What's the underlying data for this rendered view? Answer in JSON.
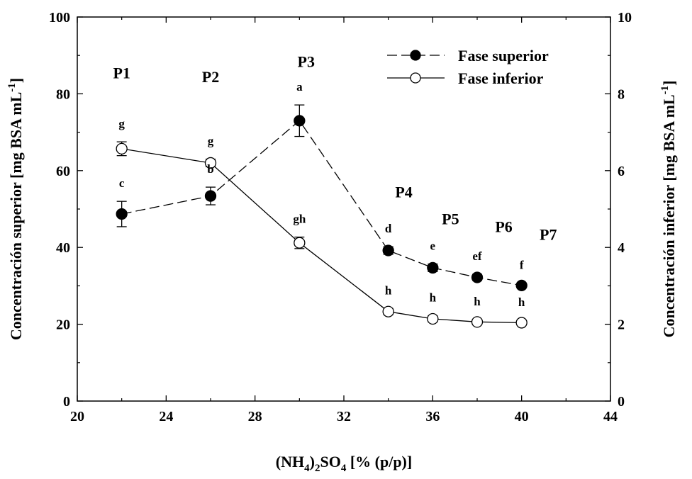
{
  "chart_data": {
    "type": "line",
    "title": "",
    "xlabel": {
      "prefix": "(NH",
      "sub1": "4",
      "mid": ")",
      "sub2": "2",
      "suffix": "SO",
      "sub3": "4",
      "tail": " [% (p/p)]"
    },
    "ylabel_left": {
      "text": "Concentración superior [mg BSA mL",
      "sup": "-1",
      "end": "]"
    },
    "ylabel_right": {
      "text": "Concentración inferior [mg BSA mL",
      "sup": "-1",
      "end": "]"
    },
    "xlim": [
      20,
      44
    ],
    "ylim_left": [
      0,
      100
    ],
    "ylim_right": [
      0,
      10
    ],
    "x_ticks": [
      20,
      24,
      28,
      32,
      36,
      40,
      44
    ],
    "y_ticks_left": [
      0,
      20,
      40,
      60,
      80,
      100
    ],
    "y_ticks_right": [
      0,
      2,
      4,
      6,
      8,
      10
    ],
    "legend_position": "top-right",
    "series": [
      {
        "name": "Fase superior",
        "axis": "left",
        "style": "dashed",
        "marker": "filled",
        "x": [
          22,
          26,
          30,
          34,
          36,
          38,
          40
        ],
        "values": [
          48.7,
          53.4,
          73.0,
          39.2,
          34.7,
          32.2,
          30.1
        ],
        "errors": [
          3.3,
          2.3,
          4.1,
          1.0,
          1.0,
          0.8,
          0.6
        ],
        "labels": [
          "c",
          "b",
          "a",
          "d",
          "e",
          "ef",
          "f"
        ]
      },
      {
        "name": "Fase inferior",
        "axis": "right",
        "style": "solid",
        "marker": "open",
        "x": [
          22,
          26,
          30,
          34,
          36,
          38,
          40
        ],
        "values": [
          6.57,
          6.2,
          4.12,
          2.33,
          2.14,
          2.06,
          2.04
        ],
        "errors": [
          0.18,
          0.1,
          0.15,
          0.08,
          0.08,
          0.06,
          0.06
        ],
        "labels": [
          "g",
          "g",
          "gh",
          "h",
          "h",
          "h",
          "h"
        ]
      }
    ],
    "phases": [
      {
        "label": "P1",
        "x": 22.0,
        "y": 84
      },
      {
        "label": "P2",
        "x": 26.0,
        "y": 83
      },
      {
        "label": "P3",
        "x": 30.3,
        "y": 87
      },
      {
        "label": "P4",
        "x": 34.7,
        "y": 53
      },
      {
        "label": "P5",
        "x": 36.8,
        "y": 46
      },
      {
        "label": "P6",
        "x": 39.2,
        "y": 44
      },
      {
        "label": "P7",
        "x": 41.2,
        "y": 42
      }
    ]
  }
}
